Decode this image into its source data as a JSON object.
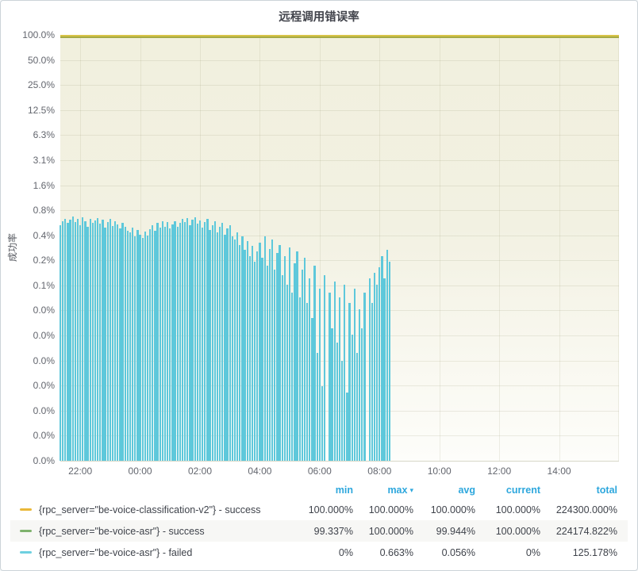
{
  "panel": {
    "title": "远程调用错误率"
  },
  "colors": {
    "yellow_series": "#EAB839",
    "green_series": "#7EB26D",
    "cyan_series": "#6ED0E0",
    "bar_fill": "#5ec8db",
    "top_line_upper": "#d8c348",
    "top_line_lower": "#a6aa44",
    "header_blue": "#2da7dd",
    "plot_bg_top": "#f1f0de",
    "plot_bg_bottom": "#fdfdfa"
  },
  "chart_data": {
    "type": "bar",
    "title": "远程调用错误率",
    "xlabel": "",
    "ylabel": "成功率",
    "y_axis": {
      "scale": "log2",
      "top_value_pct": 100,
      "halvings_to_bottom": 17,
      "tick_labels": [
        "100.0%",
        "50.0%",
        "25.0%",
        "12.5%",
        "6.3%",
        "3.1%",
        "1.6%",
        "0.8%",
        "0.4%",
        "0.2%",
        "0.1%",
        "0.0%",
        "0.0%",
        "0.0%",
        "0.0%",
        "0.0%",
        "0.0%",
        "0.0%"
      ]
    },
    "x_axis": {
      "start_time": "21:20",
      "end_time": "16:00",
      "total_minutes": 1120,
      "tick_labels": [
        "22:00",
        "00:00",
        "02:00",
        "04:00",
        "06:00",
        "08:00",
        "10:00",
        "12:00",
        "14:00"
      ],
      "tick_minutes_from_start": [
        40,
        160,
        280,
        400,
        520,
        640,
        760,
        880,
        1000
      ]
    },
    "series": [
      {
        "name": "{rpc_server=\"be-voice-classification-v2\"} - success",
        "type": "line",
        "color": "#EAB839",
        "approx_value_pct": 100.0
      },
      {
        "name": "{rpc_server=\"be-voice-asr\"} - success",
        "type": "line",
        "color": "#7EB26D",
        "approx_value_pct": 99.99
      },
      {
        "name": "{rpc_server=\"be-voice-asr\"} - failed",
        "type": "bar",
        "color": "#6ED0E0",
        "x_start": "21:20",
        "x_step_min": 5,
        "x_end": "08:20",
        "values_pct": [
          0.52,
          0.58,
          0.62,
          0.55,
          0.6,
          0.663,
          0.57,
          0.61,
          0.52,
          0.64,
          0.58,
          0.5,
          0.62,
          0.55,
          0.59,
          0.63,
          0.54,
          0.6,
          0.48,
          0.57,
          0.62,
          0.51,
          0.58,
          0.53,
          0.47,
          0.55,
          0.5,
          0.44,
          0.42,
          0.48,
          0.38,
          0.45,
          0.4,
          0.36,
          0.43,
          0.39,
          0.46,
          0.52,
          0.44,
          0.55,
          0.48,
          0.58,
          0.5,
          0.56,
          0.47,
          0.53,
          0.58,
          0.49,
          0.55,
          0.62,
          0.57,
          0.63,
          0.52,
          0.6,
          0.65,
          0.54,
          0.59,
          0.48,
          0.56,
          0.61,
          0.45,
          0.52,
          0.58,
          0.42,
          0.5,
          0.55,
          0.4,
          0.47,
          0.52,
          0.38,
          0.35,
          0.42,
          0.3,
          0.38,
          0.26,
          0.33,
          0.22,
          0.29,
          0.19,
          0.25,
          0.32,
          0.21,
          0.38,
          0.17,
          0.27,
          0.35,
          0.15,
          0.24,
          0.3,
          0.13,
          0.22,
          0.1,
          0.28,
          0.08,
          0.18,
          0.25,
          0.07,
          0.15,
          0.21,
          0.06,
          0.12,
          0.04,
          0.17,
          0.015,
          0.09,
          0.006,
          0.13,
          0,
          0.08,
          0.03,
          0.11,
          0.02,
          0.07,
          0.012,
          0.1,
          0.005,
          0.06,
          0.025,
          0.09,
          0.015,
          0.05,
          0.03,
          0.08,
          0,
          0.12,
          0.06,
          0.14,
          0.1,
          0.16,
          0.22,
          0.12,
          0.26,
          0.19
        ]
      }
    ]
  },
  "legend": {
    "columns": [
      "min",
      "max",
      "avg",
      "current",
      "total"
    ],
    "sorted_column": "max",
    "sort_caret": "▾",
    "rows": [
      {
        "label": "{rpc_server=\"be-voice-classification-v2\"} - success",
        "color": "#EAB839",
        "min": "100.000%",
        "max": "100.000%",
        "avg": "100.000%",
        "current": "100.000%",
        "total": "224300.000%"
      },
      {
        "label": "{rpc_server=\"be-voice-asr\"} - success",
        "color": "#7EB26D",
        "min": "99.337%",
        "max": "100.000%",
        "avg": "99.944%",
        "current": "100.000%",
        "total": "224174.822%"
      },
      {
        "label": "{rpc_server=\"be-voice-asr\"} - failed",
        "color": "#6ED0E0",
        "min": "0%",
        "max": "0.663%",
        "avg": "0.056%",
        "current": "0%",
        "total": "125.178%"
      }
    ]
  }
}
